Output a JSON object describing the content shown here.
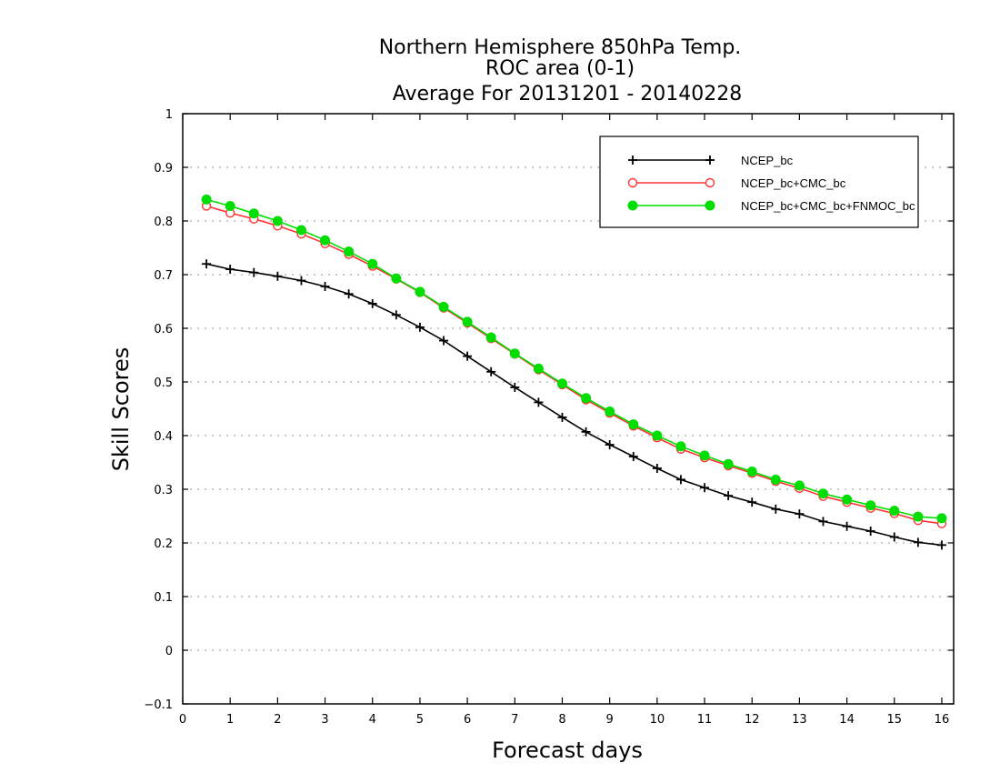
{
  "chart_data": {
    "type": "line",
    "title": [
      "Northern Hemisphere 850hPa Temp.",
      "ROC area (0-1)",
      "Average For 20131201 - 20140228"
    ],
    "xlabel": "Forecast days",
    "ylabel": "Skill Scores",
    "xlim": [
      0,
      16.25
    ],
    "ylim": [
      -0.1,
      1
    ],
    "x_ticks": [
      "0",
      "1",
      "2",
      "3",
      "4",
      "5",
      "6",
      "7",
      "8",
      "9",
      "10",
      "11",
      "12",
      "13",
      "14",
      "15",
      "16"
    ],
    "y_ticks": [
      "-0.1",
      "0",
      "0.1",
      "0.2",
      "0.3",
      "0.4",
      "0.5",
      "0.6",
      "0.7",
      "0.8",
      "0.9",
      "1"
    ],
    "grid": "horizontal-dotted",
    "legend_position": "top-right",
    "x": [
      0.5,
      1,
      1.5,
      2,
      2.5,
      3,
      3.5,
      4,
      4.5,
      5,
      5.5,
      6,
      6.5,
      7,
      7.5,
      8,
      8.5,
      9,
      9.5,
      10,
      10.5,
      11,
      11.5,
      12,
      12.5,
      13,
      13.5,
      14,
      14.5,
      15,
      15.5,
      16
    ],
    "series": [
      {
        "name": "NCEP_bc",
        "color": "#000000",
        "marker": "plus",
        "values": [
          0.72,
          0.71,
          0.704,
          0.697,
          0.689,
          0.678,
          0.664,
          0.646,
          0.625,
          0.602,
          0.577,
          0.548,
          0.519,
          0.49,
          0.462,
          0.434,
          0.407,
          0.383,
          0.361,
          0.339,
          0.318,
          0.303,
          0.288,
          0.276,
          0.263,
          0.254,
          0.24,
          0.231,
          0.222,
          0.211,
          0.201,
          0.196
        ]
      },
      {
        "name": "NCEP_bc+CMC_bc",
        "color": "#ff3333",
        "marker": "open-circle",
        "values": [
          0.828,
          0.815,
          0.804,
          0.791,
          0.776,
          0.758,
          0.738,
          0.716,
          0.692,
          0.667,
          0.638,
          0.61,
          0.581,
          0.552,
          0.523,
          0.495,
          0.467,
          0.442,
          0.418,
          0.396,
          0.375,
          0.359,
          0.344,
          0.33,
          0.315,
          0.302,
          0.287,
          0.276,
          0.265,
          0.255,
          0.242,
          0.236
        ]
      },
      {
        "name": "NCEP_bc+CMC_bc+FNMOC_bc",
        "color": "#00dd00",
        "marker": "filled-circle",
        "values": [
          0.84,
          0.828,
          0.814,
          0.8,
          0.783,
          0.764,
          0.743,
          0.72,
          0.693,
          0.668,
          0.64,
          0.612,
          0.583,
          0.553,
          0.525,
          0.497,
          0.47,
          0.445,
          0.421,
          0.4,
          0.38,
          0.363,
          0.347,
          0.333,
          0.318,
          0.307,
          0.292,
          0.281,
          0.27,
          0.26,
          0.249,
          0.246
        ]
      }
    ]
  }
}
